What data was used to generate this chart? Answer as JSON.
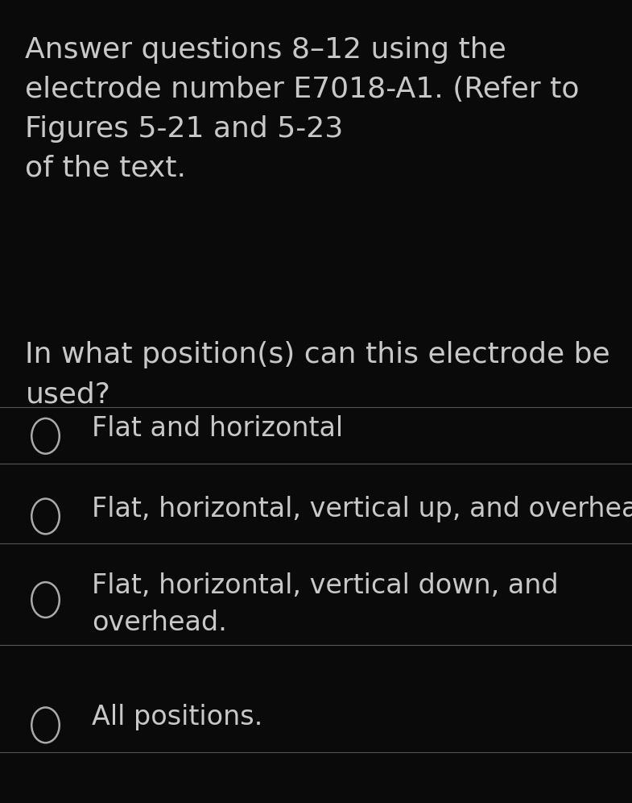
{
  "background_color": "#0a0a0a",
  "text_color": "#c8c8c8",
  "header_text": "Answer questions 8–12 using the\nelectrode number E7018-A1. (Refer to\nFigures 5-21 and 5-23\nof the text.",
  "question_text": "In what position(s) can this electrode be\nused?",
  "options": [
    "Flat and horizontal",
    "Flat, horizontal, vertical up, and overhead",
    "Flat, horizontal, vertical down, and\noverhead.",
    "All positions."
  ],
  "divider_color": "#555555",
  "circle_color": "#aaaaaa",
  "header_fontsize": 26,
  "question_fontsize": 26,
  "option_fontsize": 24,
  "font_family": "DejaVu Sans"
}
